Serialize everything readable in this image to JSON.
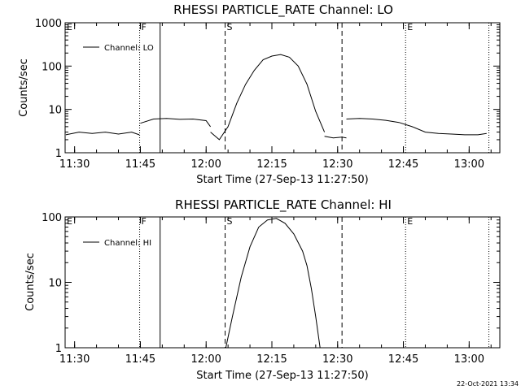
{
  "footer_timestamp": "22-Oct-2021 13:34",
  "chart_data": [
    {
      "type": "line",
      "title": "RHESSI PARTICLE_RATE Channel: LO",
      "xlabel": "Start Time (27-Sep-13 11:27:50)",
      "ylabel": "Counts/sec",
      "y_scale": "log",
      "ylim": [
        1,
        1000
      ],
      "y_ticks": [
        "1",
        "10",
        "100",
        "1000"
      ],
      "x_range_minutes": [
        "11:27:50",
        "13:07:00"
      ],
      "x_ticks": [
        "11:30",
        "11:45",
        "12:00",
        "12:15",
        "12:30",
        "12:45",
        "13:00"
      ],
      "legend": {
        "label": "Channel: LO",
        "placement": "top-left"
      },
      "markers": [
        {
          "label": "E",
          "time": "11:27:50",
          "style": "dotted"
        },
        {
          "label": "F",
          "time": "11:44:50",
          "style": "dotted"
        },
        {
          "label": "",
          "time": "11:49:30",
          "style": "solid"
        },
        {
          "label": "S",
          "time": "12:04:20",
          "style": "dashed"
        },
        {
          "label": "",
          "time": "12:31:00",
          "style": "dashed"
        },
        {
          "label": "E",
          "time": "12:45:30",
          "style": "dotted"
        },
        {
          "label": "",
          "time": "13:04:30",
          "style": "dotted"
        }
      ],
      "series": [
        {
          "name": "Channel: LO",
          "segments": [
            {
              "x": [
                "11:28",
                "11:31",
                "11:34",
                "11:37",
                "11:40",
                "11:43",
                "11:44:45"
              ],
              "y": [
                2.6,
                3.0,
                2.8,
                3.0,
                2.7,
                3.0,
                2.6
              ]
            },
            {
              "x": [
                "11:45",
                "11:48",
                "11:51",
                "11:54",
                "11:57",
                "12:00",
                "12:01"
              ],
              "y": [
                4.8,
                6.0,
                6.2,
                5.9,
                6.0,
                5.5,
                4.0
              ]
            },
            {
              "x": [
                "12:01",
                "12:03",
                "12:05",
                "12:07",
                "12:09",
                "12:11",
                "12:13",
                "12:15",
                "12:17",
                "12:19",
                "12:21",
                "12:23",
                "12:25",
                "12:27"
              ],
              "y": [
                3.0,
                2.0,
                4.0,
                14,
                38,
                80,
                140,
                170,
                185,
                160,
                100,
                38,
                9,
                3
              ]
            },
            {
              "x": [
                "12:27",
                "12:29",
                "12:31",
                "12:32"
              ],
              "y": [
                2.4,
                2.2,
                2.3,
                2.2
              ]
            },
            {
              "x": [
                "12:32",
                "12:35",
                "12:38",
                "12:41",
                "12:44",
                "12:47",
                "12:50",
                "12:53",
                "12:56",
                "12:59",
                "13:02",
                "13:04"
              ],
              "y": [
                6.0,
                6.2,
                6.0,
                5.6,
                5.0,
                4.0,
                3.0,
                2.8,
                2.7,
                2.6,
                2.6,
                2.8
              ]
            }
          ]
        }
      ]
    },
    {
      "type": "line",
      "title": "RHESSI PARTICLE_RATE Channel: HI",
      "xlabel": "Start Time (27-Sep-13 11:27:50)",
      "ylabel": "Counts/sec",
      "y_scale": "log",
      "ylim": [
        1,
        100
      ],
      "y_ticks": [
        "1",
        "10",
        "100"
      ],
      "x_range_minutes": [
        "11:27:50",
        "13:07:00"
      ],
      "x_ticks": [
        "11:30",
        "11:45",
        "12:00",
        "12:15",
        "12:30",
        "12:45",
        "13:00"
      ],
      "legend": {
        "label": "Channel: HI",
        "placement": "top-left"
      },
      "markers": [
        {
          "label": "E",
          "time": "11:27:50",
          "style": "dotted"
        },
        {
          "label": "F",
          "time": "11:44:50",
          "style": "dotted"
        },
        {
          "label": "",
          "time": "11:49:30",
          "style": "solid"
        },
        {
          "label": "S",
          "time": "12:04:20",
          "style": "dashed"
        },
        {
          "label": "",
          "time": "12:31:00",
          "style": "dashed"
        },
        {
          "label": "E",
          "time": "12:45:30",
          "style": "dotted"
        },
        {
          "label": "",
          "time": "13:04:30",
          "style": "dotted"
        }
      ],
      "series": [
        {
          "name": "Channel: HI",
          "segments": [
            {
              "x": [
                "12:04:30",
                "12:06",
                "12:08",
                "12:10",
                "12:12",
                "12:14",
                "12:16",
                "12:18",
                "12:20",
                "12:22",
                "12:23",
                "12:24",
                "12:25",
                "12:26"
              ],
              "y": [
                1.0,
                3.0,
                12,
                35,
                70,
                90,
                95,
                80,
                55,
                30,
                18,
                8,
                3,
                1.0
              ]
            }
          ]
        }
      ]
    }
  ]
}
